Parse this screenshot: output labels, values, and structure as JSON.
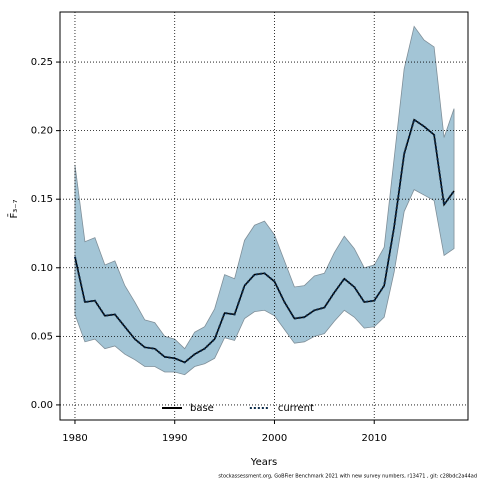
{
  "chart_data": {
    "type": "line",
    "xlabel": "Years",
    "ylabel": "F̄₃₋₇",
    "footer": "stockassessment.org, GoBFier Benchmark 2021 with new survey numbers, r13471 , git: c28bdc2a44ad",
    "x": [
      1980,
      1981,
      1982,
      1983,
      1984,
      1985,
      1986,
      1987,
      1988,
      1989,
      1990,
      1991,
      1992,
      1993,
      1994,
      1995,
      1996,
      1997,
      1998,
      1999,
      2000,
      2001,
      2002,
      2003,
      2004,
      2005,
      2006,
      2007,
      2008,
      2009,
      2010,
      2011,
      2012,
      2013,
      2014,
      2015,
      2016,
      2017,
      2018
    ],
    "series": [
      {
        "name": "base",
        "color": "#000000",
        "style": "solid",
        "values": [
          0.108,
          0.075,
          0.076,
          0.065,
          0.066,
          0.057,
          0.048,
          0.042,
          0.041,
          0.035,
          0.034,
          0.031,
          0.037,
          0.041,
          0.048,
          0.067,
          0.066,
          0.087,
          0.095,
          0.096,
          0.09,
          0.075,
          0.063,
          0.064,
          0.069,
          0.071,
          0.082,
          0.092,
          0.086,
          0.075,
          0.076,
          0.087,
          0.13,
          0.183,
          0.208,
          0.203,
          0.197,
          0.146,
          0.156
        ]
      },
      {
        "name": "current",
        "color": "#0b2a4a",
        "style": "dotted",
        "values": [
          0.108,
          0.075,
          0.076,
          0.065,
          0.066,
          0.057,
          0.048,
          0.042,
          0.041,
          0.035,
          0.034,
          0.031,
          0.037,
          0.041,
          0.048,
          0.067,
          0.066,
          0.087,
          0.095,
          0.096,
          0.09,
          0.075,
          0.063,
          0.064,
          0.069,
          0.071,
          0.082,
          0.092,
          0.086,
          0.075,
          0.076,
          0.087,
          0.13,
          0.183,
          0.208,
          0.203,
          0.197,
          0.146,
          0.156
        ],
        "band_color": "#a3c5d6",
        "upper": [
          0.175,
          0.119,
          0.122,
          0.102,
          0.105,
          0.087,
          0.075,
          0.062,
          0.06,
          0.05,
          0.048,
          0.041,
          0.053,
          0.057,
          0.07,
          0.095,
          0.092,
          0.12,
          0.131,
          0.134,
          0.124,
          0.105,
          0.086,
          0.087,
          0.094,
          0.096,
          0.111,
          0.123,
          0.114,
          0.1,
          0.102,
          0.115,
          0.18,
          0.245,
          0.276,
          0.266,
          0.261,
          0.195,
          0.216
        ],
        "lower": [
          0.066,
          0.046,
          0.048,
          0.041,
          0.043,
          0.037,
          0.033,
          0.028,
          0.028,
          0.024,
          0.024,
          0.022,
          0.028,
          0.03,
          0.034,
          0.049,
          0.047,
          0.063,
          0.068,
          0.069,
          0.065,
          0.055,
          0.045,
          0.046,
          0.05,
          0.052,
          0.061,
          0.069,
          0.064,
          0.056,
          0.057,
          0.064,
          0.097,
          0.141,
          0.157,
          0.153,
          0.149,
          0.109,
          0.114
        ]
      }
    ],
    "xlim": [
      1978.5,
      2019.4
    ],
    "ylim": [
      -0.011,
      0.2865
    ],
    "xticks": [
      1980,
      1990,
      2000,
      2010
    ],
    "yticks": [
      {
        "value": 0,
        "label": "0.00"
      },
      {
        "value": 0.05,
        "label": "0.05"
      },
      {
        "value": 0.1,
        "label": "0.10"
      },
      {
        "value": 0.15,
        "label": "0.15"
      },
      {
        "value": 0.2,
        "label": "0.20"
      },
      {
        "value": 0.25,
        "label": "0.25"
      }
    ],
    "grid": true,
    "legend": "bottom"
  }
}
